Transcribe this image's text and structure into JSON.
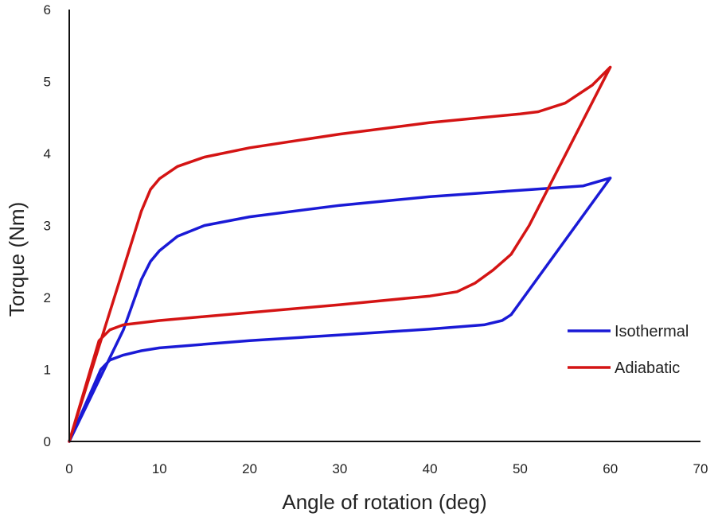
{
  "chart_data": {
    "type": "line",
    "title": "",
    "xlabel": "Angle of rotation (deg)",
    "ylabel": "Torque (Nm)",
    "xlim": [
      0,
      70
    ],
    "ylim": [
      0,
      6
    ],
    "x_ticks": [
      "0",
      "10",
      "20",
      "30",
      "40",
      "50",
      "60",
      "70"
    ],
    "y_ticks": [
      "0",
      "1",
      "2",
      "3",
      "4",
      "5",
      "6"
    ],
    "grid": false,
    "legend_position": "right",
    "series": [
      {
        "name": "Isothermal",
        "color": "#1a1ad6",
        "points": [
          [
            0,
            0
          ],
          [
            3.5,
            1.0
          ],
          [
            4.5,
            1.13
          ],
          [
            6,
            1.2
          ],
          [
            8,
            1.26
          ],
          [
            10,
            1.3
          ],
          [
            15,
            1.35
          ],
          [
            20,
            1.4
          ],
          [
            30,
            1.48
          ],
          [
            40,
            1.56
          ],
          [
            46,
            1.62
          ],
          [
            48,
            1.68
          ],
          [
            49,
            1.76
          ],
          [
            60,
            3.66
          ],
          [
            57,
            3.55
          ],
          [
            50,
            3.49
          ],
          [
            40,
            3.4
          ],
          [
            30,
            3.28
          ],
          [
            20,
            3.12
          ],
          [
            15,
            3.0
          ],
          [
            12,
            2.85
          ],
          [
            10,
            2.65
          ],
          [
            9,
            2.5
          ],
          [
            8,
            2.25
          ],
          [
            6,
            1.55
          ],
          [
            0,
            0
          ]
        ]
      },
      {
        "name": "Adiabatic",
        "color": "#d41414",
        "points": [
          [
            0,
            0
          ],
          [
            3.3,
            1.4
          ],
          [
            4.5,
            1.55
          ],
          [
            6,
            1.62
          ],
          [
            10,
            1.68
          ],
          [
            20,
            1.79
          ],
          [
            30,
            1.9
          ],
          [
            40,
            2.02
          ],
          [
            43,
            2.08
          ],
          [
            45,
            2.2
          ],
          [
            47,
            2.38
          ],
          [
            49,
            2.6
          ],
          [
            51,
            3.0
          ],
          [
            60,
            5.2
          ],
          [
            58,
            4.95
          ],
          [
            55,
            4.7
          ],
          [
            52,
            4.58
          ],
          [
            50,
            4.55
          ],
          [
            40,
            4.43
          ],
          [
            30,
            4.27
          ],
          [
            20,
            4.08
          ],
          [
            15,
            3.95
          ],
          [
            12,
            3.82
          ],
          [
            10,
            3.65
          ],
          [
            9,
            3.5
          ],
          [
            8,
            3.2
          ],
          [
            6,
            2.4
          ],
          [
            0,
            0
          ]
        ]
      }
    ]
  }
}
